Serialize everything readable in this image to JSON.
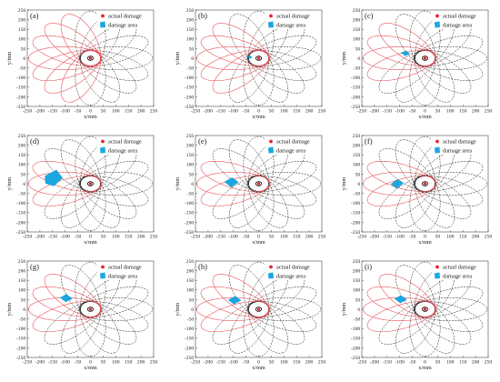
{
  "colors": {
    "background": "#ffffff",
    "axis": "#222222",
    "path_dashed": "#1c1c1c",
    "path_damaged": "#e8535a",
    "actual_damage": "#e8242c",
    "damage_area": "#1aa7e0"
  },
  "legend": {
    "actual_damage_label": "actual damage",
    "damage_area_label": "damage area"
  },
  "chart_data": [
    {
      "type": "scatter",
      "label": "(a)",
      "xlabel": "x/mm",
      "ylabel": "y/mm",
      "xlim": [
        -250,
        250
      ],
      "ylim": [
        -250,
        250
      ],
      "xticks": [
        -250,
        -200,
        -150,
        -100,
        -50,
        0,
        50,
        100,
        150,
        200,
        250
      ],
      "yticks": [
        -250,
        -200,
        -150,
        -100,
        -50,
        0,
        50,
        100,
        150,
        200,
        250
      ],
      "grid": false,
      "legend_position": "top-right",
      "sensor_path_ellipses": {
        "count": 16,
        "center_distance": 100,
        "semi_major": 145,
        "semi_minor": 60
      },
      "damaged_path_ellipses": [
        5,
        6,
        7,
        8,
        9,
        10,
        11
      ],
      "actual_damage": {
        "x": 0,
        "y": 0
      },
      "damage_area": []
    },
    {
      "type": "scatter",
      "label": "(b)",
      "xlabel": "x/mm",
      "ylabel": "y/mm",
      "xlim": [
        -250,
        250
      ],
      "ylim": [
        -250,
        250
      ],
      "xticks": [
        -250,
        -200,
        -150,
        -100,
        -50,
        0,
        50,
        100,
        150,
        200,
        250
      ],
      "yticks": [
        -250,
        -200,
        -150,
        -100,
        -50,
        0,
        50,
        100,
        150,
        200,
        250
      ],
      "grid": false,
      "legend_position": "top-right",
      "sensor_path_ellipses": {
        "count": 16,
        "center_distance": 100,
        "semi_major": 145,
        "semi_minor": 60
      },
      "damaged_path_ellipses": [
        6,
        7,
        8,
        9,
        10
      ],
      "actual_damage": {
        "x": 0,
        "y": 0
      },
      "damage_area": [
        [
          -45,
          8
        ],
        [
          -33,
          12
        ],
        [
          -25,
          4
        ],
        [
          -35,
          -1
        ]
      ]
    },
    {
      "type": "scatter",
      "label": "(c)",
      "xlabel": "x/mm",
      "ylabel": "y/mm",
      "xlim": [
        -250,
        250
      ],
      "ylim": [
        -250,
        250
      ],
      "xticks": [
        -250,
        -200,
        -150,
        -100,
        -50,
        0,
        50,
        100,
        150,
        200,
        250
      ],
      "yticks": [
        -250,
        -200,
        -150,
        -100,
        -50,
        0,
        50,
        100,
        150,
        200,
        250
      ],
      "grid": false,
      "legend_position": "top-right",
      "sensor_path_ellipses": {
        "count": 16,
        "center_distance": 100,
        "semi_major": 145,
        "semi_minor": 60
      },
      "damaged_path_ellipses": [
        6,
        7,
        8,
        9
      ],
      "actual_damage": {
        "x": 0,
        "y": 0
      },
      "damage_area": [
        [
          -95,
          28
        ],
        [
          -75,
          38
        ],
        [
          -60,
          24
        ],
        [
          -78,
          12
        ]
      ]
    },
    {
      "type": "scatter",
      "label": "(d)",
      "xlabel": "x/mm",
      "ylabel": "y/mm",
      "xlim": [
        -250,
        250
      ],
      "ylim": [
        -250,
        250
      ],
      "xticks": [
        -250,
        -200,
        -150,
        -100,
        -50,
        0,
        50,
        100,
        150,
        200,
        250
      ],
      "yticks": [
        -250,
        -200,
        -150,
        -100,
        -50,
        0,
        50,
        100,
        150,
        200,
        250
      ],
      "grid": false,
      "legend_position": "top-right",
      "sensor_path_ellipses": {
        "count": 16,
        "center_distance": 100,
        "semi_major": 145,
        "semi_minor": 60
      },
      "damaged_path_ellipses": [
        7,
        8,
        9
      ],
      "actual_damage": {
        "x": 0,
        "y": 0
      },
      "damage_area": [
        [
          -180,
          40
        ],
        [
          -135,
          72
        ],
        [
          -110,
          30
        ],
        [
          -145,
          -12
        ],
        [
          -178,
          2
        ]
      ]
    },
    {
      "type": "scatter",
      "label": "(e)",
      "xlabel": "x/mm",
      "ylabel": "y/mm",
      "xlim": [
        -250,
        250
      ],
      "ylim": [
        -250,
        250
      ],
      "xticks": [
        -250,
        -200,
        -150,
        -100,
        -50,
        0,
        50,
        100,
        150,
        200,
        250
      ],
      "yticks": [
        -250,
        -200,
        -150,
        -100,
        -50,
        0,
        50,
        100,
        150,
        200,
        250
      ],
      "grid": false,
      "legend_position": "top-right",
      "sensor_path_ellipses": {
        "count": 16,
        "center_distance": 100,
        "semi_major": 145,
        "semi_minor": 60
      },
      "damaged_path_ellipses": [
        7,
        8,
        9
      ],
      "actual_damage": {
        "x": 0,
        "y": 0
      },
      "damage_area": [
        [
          -135,
          10
        ],
        [
          -105,
          32
        ],
        [
          -80,
          8
        ],
        [
          -108,
          -18
        ]
      ]
    },
    {
      "type": "scatter",
      "label": "(f)",
      "xlabel": "x/mm",
      "ylabel": "y/mm",
      "xlim": [
        -250,
        250
      ],
      "ylim": [
        -250,
        250
      ],
      "xticks": [
        -250,
        -200,
        -150,
        -100,
        -50,
        0,
        50,
        100,
        150,
        200,
        250
      ],
      "yticks": [
        -250,
        -200,
        -150,
        -100,
        -50,
        0,
        50,
        100,
        150,
        200,
        250
      ],
      "grid": false,
      "legend_position": "top-right",
      "sensor_path_ellipses": {
        "count": 16,
        "center_distance": 100,
        "semi_major": 145,
        "semi_minor": 60
      },
      "damaged_path_ellipses": [
        7,
        8,
        9
      ],
      "actual_damage": {
        "x": 0,
        "y": 0
      },
      "damage_area": [
        [
          -135,
          -2
        ],
        [
          -110,
          22
        ],
        [
          -85,
          4
        ],
        [
          -112,
          -25
        ]
      ]
    },
    {
      "type": "scatter",
      "label": "(g)",
      "xlabel": "x/mm",
      "ylabel": "y/mm",
      "xlim": [
        -250,
        250
      ],
      "ylim": [
        -250,
        250
      ],
      "xticks": [
        -250,
        -200,
        -150,
        -100,
        -50,
        0,
        50,
        100,
        150,
        200,
        250
      ],
      "yticks": [
        -250,
        -200,
        -150,
        -100,
        -50,
        0,
        50,
        100,
        150,
        200,
        250
      ],
      "grid": false,
      "legend_position": "top-right",
      "sensor_path_ellipses": {
        "count": 16,
        "center_distance": 100,
        "semi_major": 145,
        "semi_minor": 60
      },
      "damaged_path_ellipses": [
        6,
        7,
        8,
        9
      ],
      "actual_damage": {
        "x": 0,
        "y": 0
      },
      "damage_area": [
        [
          -120,
          60
        ],
        [
          -95,
          78
        ],
        [
          -72,
          55
        ],
        [
          -98,
          38
        ]
      ]
    },
    {
      "type": "scatter",
      "label": "(h)",
      "xlabel": "x/mm",
      "ylabel": "y/mm",
      "xlim": [
        -250,
        250
      ],
      "ylim": [
        -250,
        250
      ],
      "xticks": [
        -250,
        -200,
        -150,
        -100,
        -50,
        0,
        50,
        100,
        150,
        200,
        250
      ],
      "yticks": [
        -250,
        -200,
        -150,
        -100,
        -50,
        0,
        50,
        100,
        150,
        200,
        250
      ],
      "grid": false,
      "legend_position": "top-right",
      "sensor_path_ellipses": {
        "count": 16,
        "center_distance": 100,
        "semi_major": 145,
        "semi_minor": 60
      },
      "damaged_path_ellipses": [
        6,
        7,
        8,
        9
      ],
      "actual_damage": {
        "x": 0,
        "y": 0
      },
      "damage_area": [
        [
          -120,
          48
        ],
        [
          -92,
          68
        ],
        [
          -70,
          46
        ],
        [
          -98,
          26
        ]
      ]
    },
    {
      "type": "scatter",
      "label": "(i)",
      "xlabel": "x/mm",
      "ylabel": "y/mm",
      "xlim": [
        -250,
        250
      ],
      "ylim": [
        -250,
        250
      ],
      "xticks": [
        -250,
        -200,
        -150,
        -100,
        -50,
        0,
        50,
        100,
        150,
        200,
        250
      ],
      "yticks": [
        -250,
        -200,
        -150,
        -100,
        -50,
        0,
        50,
        100,
        150,
        200,
        250
      ],
      "grid": false,
      "legend_position": "top-right",
      "sensor_path_ellipses": {
        "count": 16,
        "center_distance": 100,
        "semi_major": 145,
        "semi_minor": 60
      },
      "damaged_path_ellipses": [
        6,
        7,
        8,
        9
      ],
      "actual_damage": {
        "x": 0,
        "y": 0
      },
      "damage_area": [
        [
          -120,
          55
        ],
        [
          -95,
          72
        ],
        [
          -72,
          50
        ],
        [
          -98,
          32
        ]
      ]
    }
  ]
}
